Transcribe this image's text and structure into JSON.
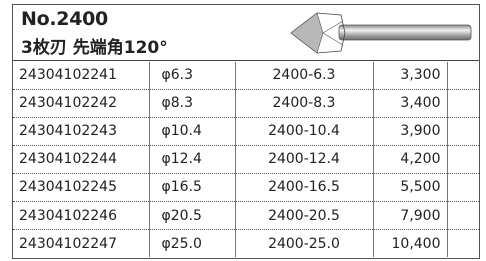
{
  "header": {
    "title": "No.2400",
    "subtitle": "3枚刃 先端角120°"
  },
  "table": {
    "rows": [
      [
        "24304102241",
        "φ6.3",
        "2400-6.3",
        "3,300"
      ],
      [
        "24304102242",
        "φ8.3",
        "2400-8.3",
        "3,400"
      ],
      [
        "24304102243",
        "φ10.4",
        "2400-10.4",
        "3,900"
      ],
      [
        "24304102244",
        "φ12.4",
        "2400-12.4",
        "4,200"
      ],
      [
        "24304102245",
        "φ16.5",
        "2400-16.5",
        "5,500"
      ],
      [
        "24304102246",
        "φ20.5",
        "2400-20.5",
        "7,900"
      ],
      [
        "24304102247",
        "φ25.0",
        "2400-25.0",
        "10,400"
      ]
    ]
  }
}
